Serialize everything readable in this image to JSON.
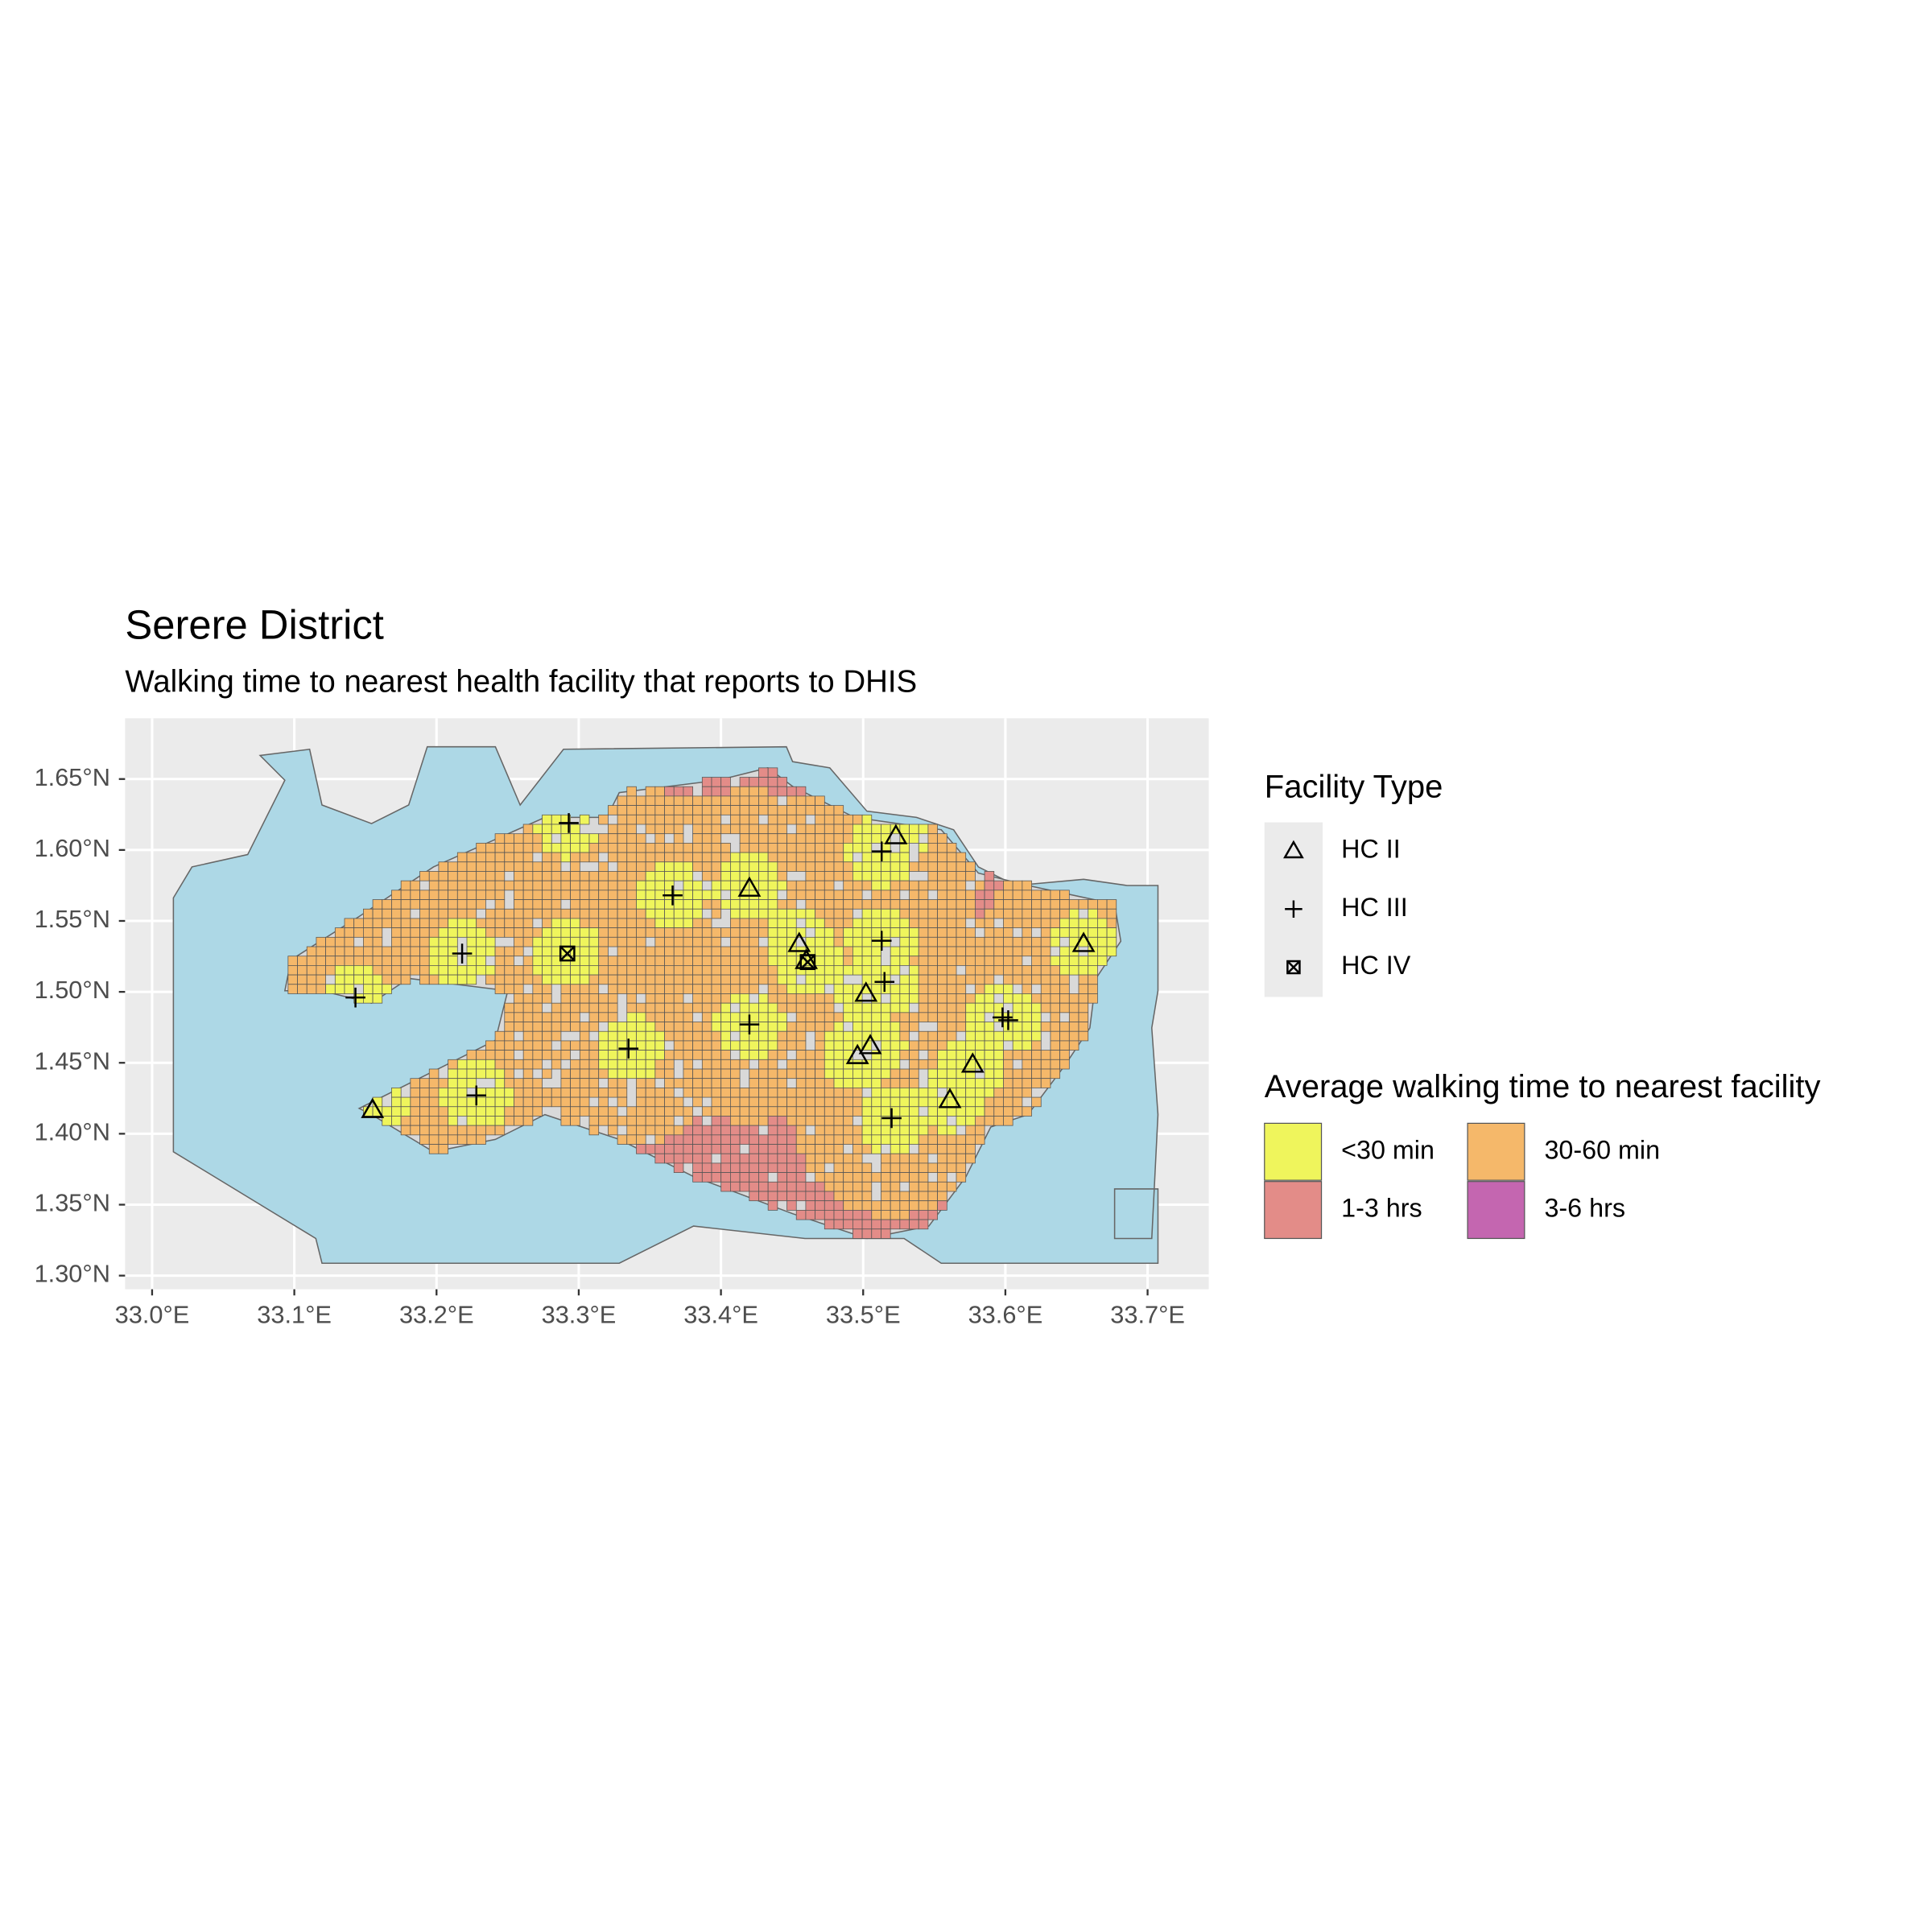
{
  "chart_data": {
    "type": "map",
    "title": "Serere District",
    "subtitle": "Walking time to nearest health facility that reports to DHIS",
    "xlim": [
      32.981,
      33.743
    ],
    "ylim": [
      1.2904,
      1.6928
    ],
    "xticks": [
      {
        "value": 33.0,
        "label": "33.0°E"
      },
      {
        "value": 33.1,
        "label": "33.1°E"
      },
      {
        "value": 33.2,
        "label": "33.2°E"
      },
      {
        "value": 33.3,
        "label": "33.3°E"
      },
      {
        "value": 33.4,
        "label": "33.4°E"
      },
      {
        "value": 33.5,
        "label": "33.5°E"
      },
      {
        "value": 33.6,
        "label": "33.6°E"
      },
      {
        "value": 33.7,
        "label": "33.7°E"
      }
    ],
    "yticks": [
      {
        "value": 1.3,
        "label": "1.30°N"
      },
      {
        "value": 1.35,
        "label": "1.35°N"
      },
      {
        "value": 1.4,
        "label": "1.40°N"
      },
      {
        "value": 1.45,
        "label": "1.45°N"
      },
      {
        "value": 1.5,
        "label": "1.50°N"
      },
      {
        "value": 1.55,
        "label": "1.55°N"
      },
      {
        "value": 1.6,
        "label": "1.60°N"
      },
      {
        "value": 1.65,
        "label": "1.65°N"
      }
    ],
    "grid": true,
    "legend_title": "Facility Type",
    "series": [
      {
        "name": "HC II",
        "marker": "triangle",
        "x": [
          33.523,
          33.42,
          33.455,
          33.46,
          33.502,
          33.505,
          33.496,
          33.577,
          33.561,
          33.655,
          33.155
        ],
        "y": [
          1.61,
          1.573,
          1.534,
          1.522,
          1.499,
          1.462,
          1.455,
          1.449,
          1.424,
          1.534,
          1.417
        ]
      },
      {
        "name": "HC III",
        "marker": "plus",
        "x": [
          33.293,
          33.513,
          33.366,
          33.513,
          33.218,
          33.515,
          33.143,
          33.42,
          33.598,
          33.602,
          33.335,
          33.228,
          33.52
        ],
        "y": [
          1.619,
          1.599,
          1.568,
          1.536,
          1.527,
          1.507,
          1.496,
          1.477,
          1.482,
          1.48,
          1.46,
          1.427,
          1.411
        ]
      },
      {
        "name": "HC IV",
        "marker": "square-x",
        "x": [
          33.292,
          33.461
        ],
        "y": [
          1.527,
          1.521
        ]
      }
    ],
    "fill_legend": {
      "title": "Average walking time to nearest facility",
      "items": [
        {
          "label": "<30 min",
          "color": "#eff55c"
        },
        {
          "label": "30-60 min",
          "color": "#f5b86a"
        },
        {
          "label": "1-3 hrs",
          "color": "#e38c88"
        },
        {
          "label": "3-6 hrs",
          "color": "#c466b0"
        }
      ]
    }
  }
}
